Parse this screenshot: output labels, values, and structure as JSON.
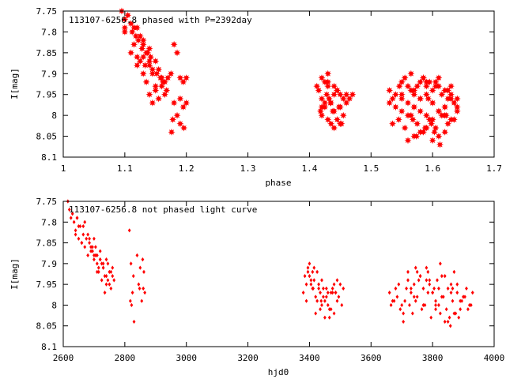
{
  "chart_data": [
    {
      "type": "scatter",
      "title": "113107-6256.8 phased with P=2392day",
      "xlabel": "phase",
      "ylabel": "I[mag]",
      "xlim": [
        1,
        1.7
      ],
      "ylim": [
        8.1,
        7.75
      ],
      "y_inverted": true,
      "xticks": [
        "1",
        "1.1",
        "1.2",
        "1.3",
        "1.4",
        "1.5",
        "1.6",
        "1.7"
      ],
      "yticks": [
        "7.75",
        "7.8",
        "7.85",
        "7.9",
        "7.95",
        "8",
        "8.05",
        "8.1"
      ],
      "marker": "star",
      "color": "#ff0000",
      "series": [
        {
          "x": [
            1.095,
            1.1,
            1.105,
            1.1,
            1.11,
            1.112,
            1.115,
            1.118,
            1.1,
            1.12,
            1.122,
            1.115,
            1.125,
            1.128,
            1.13,
            1.11,
            1.12,
            1.13,
            1.135,
            1.14,
            1.125,
            1.13,
            1.133,
            1.137,
            1.14,
            1.142,
            1.145,
            1.12,
            1.13,
            1.14,
            1.15,
            1.152,
            1.155,
            1.16,
            1.135,
            1.145,
            1.15,
            1.158,
            1.162,
            1.14,
            1.15,
            1.16,
            1.165,
            1.145,
            1.155,
            1.165,
            1.17,
            1.175,
            1.18,
            1.185,
            1.19,
            1.195,
            1.2,
            1.18,
            1.19,
            1.185,
            1.195,
            1.178,
            1.2,
            1.176,
            1.19,
            1.196,
            1.168,
            1.42,
            1.425,
            1.43,
            1.428,
            1.415,
            1.42,
            1.43,
            1.435,
            1.44,
            1.418,
            1.425,
            1.432,
            1.44,
            1.445,
            1.45,
            1.455,
            1.42,
            1.43,
            1.44,
            1.45,
            1.46,
            1.465,
            1.47,
            1.425,
            1.435,
            1.445,
            1.455,
            1.44,
            1.45,
            1.43,
            1.42,
            1.445,
            1.438,
            1.46,
            1.448,
            1.412,
            1.452,
            1.434,
            1.53,
            1.535,
            1.54,
            1.55,
            1.555,
            1.56,
            1.565,
            1.57,
            1.575,
            1.58,
            1.585,
            1.59,
            1.595,
            1.6,
            1.605,
            1.61,
            1.615,
            1.62,
            1.625,
            1.63,
            1.635,
            1.64,
            1.53,
            1.54,
            1.55,
            1.56,
            1.57,
            1.58,
            1.59,
            1.6,
            1.61,
            1.62,
            1.63,
            1.64,
            1.535,
            1.545,
            1.555,
            1.565,
            1.575,
            1.585,
            1.595,
            1.605,
            1.615,
            1.625,
            1.635,
            1.55,
            1.56,
            1.57,
            1.58,
            1.59,
            1.6,
            1.61,
            1.62,
            1.63,
            1.56,
            1.57,
            1.58,
            1.59,
            1.6,
            1.61,
            1.62,
            1.55,
            1.57,
            1.59,
            1.61,
            1.63,
            1.58,
            1.6,
            1.62,
            1.64,
            1.565,
            1.585,
            1.605,
            1.625,
            1.546,
            1.598,
            1.612,
            1.574,
            1.588,
            1.622,
            1.603,
            1.568,
            1.593
          ],
          "y": [
            7.75,
            7.77,
            7.76,
            7.79,
            7.78,
            7.8,
            7.79,
            7.81,
            7.8,
            7.79,
            7.82,
            7.83,
            7.81,
            7.84,
            7.83,
            7.85,
            7.86,
            7.82,
            7.85,
            7.84,
            7.87,
            7.86,
            7.88,
            7.85,
            7.87,
            7.86,
            7.89,
            7.88,
            7.9,
            7.88,
            7.87,
            7.9,
            7.89,
            7.91,
            7.92,
            7.9,
            7.93,
            7.91,
            7.92,
            7.95,
            7.94,
            7.93,
            7.95,
            7.97,
            7.96,
            7.92,
            7.91,
            7.9,
            7.83,
            7.85,
            7.91,
            7.92,
            7.91,
            7.97,
            7.96,
            8.0,
            7.98,
            8.01,
            7.97,
            8.04,
            8.02,
            8.03,
            7.94,
            7.91,
            7.92,
            7.9,
            7.95,
            7.94,
            7.96,
            7.93,
            7.97,
            7.95,
            7.99,
            7.98,
            7.96,
            7.93,
            7.94,
            7.95,
            7.96,
            8.0,
            8.01,
            7.99,
            7.98,
            7.97,
            7.96,
            7.95,
            7.97,
            8.02,
            8.01,
            8.0,
            8.03,
            8.02,
            7.92,
            7.98,
            7.94,
            7.99,
            7.95,
            7.98,
            7.93,
            8.02,
            7.97,
            7.94,
            7.96,
            7.95,
            7.92,
            7.91,
            7.93,
            7.94,
            7.95,
            7.93,
            7.92,
            7.91,
            7.93,
            7.92,
            7.94,
            7.93,
            7.91,
            7.95,
            7.94,
            7.96,
            7.93,
            7.97,
            7.96,
            7.97,
            7.98,
            7.99,
            8.0,
            7.98,
            7.99,
            8.0,
            8.01,
            7.99,
            8.0,
            8.01,
            7.98,
            8.02,
            8.01,
            8.03,
            8.0,
            8.02,
            8.04,
            8.01,
            8.03,
            8.0,
            8.02,
            8.01,
            7.96,
            7.97,
            7.98,
            7.96,
            7.95,
            7.97,
            7.99,
            7.98,
            7.96,
            8.06,
            8.05,
            8.04,
            8.03,
            8.06,
            8.05,
            8.04,
            7.95,
            7.94,
            7.92,
            7.93,
            7.95,
            7.96,
            7.97,
            7.98,
            7.99,
            7.9,
            7.91,
            7.92,
            7.94,
            7.93,
            8.02,
            8.07,
            8.05,
            8.03,
            8.0,
            8.04,
            8.01,
            7.96
          ]
        }
      ]
    },
    {
      "type": "scatter",
      "title": "113107-6256.8 not phased light curve",
      "xlabel": "hjd0",
      "ylabel": "I[mag]",
      "xlim": [
        2600,
        4000
      ],
      "ylim": [
        8.1,
        7.75
      ],
      "y_inverted": true,
      "xticks": [
        "2600",
        "2800",
        "3000",
        "3200",
        "3400",
        "3600",
        "3800",
        "4000"
      ],
      "yticks": [
        "7.75",
        "7.8",
        "7.85",
        "7.9",
        "7.95",
        "8",
        "8.05",
        "8.1"
      ],
      "marker": "diamond",
      "color": "#ff0000",
      "series": [
        {
          "x": [
            2615,
            2620,
            2625,
            2630,
            2635,
            2640,
            2645,
            2650,
            2655,
            2660,
            2665,
            2670,
            2675,
            2680,
            2685,
            2690,
            2695,
            2700,
            2705,
            2710,
            2715,
            2720,
            2725,
            2730,
            2735,
            2740,
            2745,
            2750,
            2755,
            2760,
            2765,
            2640,
            2650,
            2660,
            2670,
            2680,
            2690,
            2700,
            2710,
            2720,
            2730,
            2740,
            2750,
            2760,
            2645,
            2665,
            2685,
            2705,
            2725,
            2745,
            2695,
            2715,
            2735,
            2755,
            2700,
            2720,
            2740,
            2710,
            2730,
            2815,
            2820,
            2825,
            2830,
            2840,
            2845,
            2850,
            2855,
            2860,
            2865,
            2818,
            2828,
            2848,
            2858,
            2822,
            2862,
            3380,
            3385,
            3390,
            3395,
            3400,
            3405,
            3410,
            3415,
            3420,
            3425,
            3430,
            3435,
            3440,
            3445,
            3450,
            3455,
            3460,
            3465,
            3470,
            3475,
            3480,
            3485,
            3490,
            3495,
            3500,
            3505,
            3510,
            3390,
            3400,
            3410,
            3420,
            3430,
            3440,
            3450,
            3460,
            3470,
            3480,
            3490,
            3395,
            3415,
            3435,
            3455,
            3475,
            3405,
            3425,
            3445,
            3465,
            3485,
            3412,
            3438,
            3660,
            3670,
            3680,
            3690,
            3700,
            3710,
            3720,
            3730,
            3740,
            3750,
            3760,
            3770,
            3780,
            3790,
            3800,
            3810,
            3820,
            3830,
            3840,
            3850,
            3860,
            3870,
            3880,
            3890,
            3900,
            3910,
            3920,
            3930,
            3665,
            3675,
            3685,
            3695,
            3705,
            3715,
            3725,
            3735,
            3745,
            3755,
            3765,
            3775,
            3785,
            3795,
            3805,
            3815,
            3825,
            3835,
            3845,
            3855,
            3865,
            3875,
            3885,
            3895,
            3905,
            3915,
            3925,
            3720,
            3740,
            3760,
            3780,
            3800,
            3820,
            3840,
            3860,
            3880,
            3900,
            3730,
            3750,
            3770,
            3790,
            3810,
            3830,
            3850,
            3870,
            3890,
            3745,
            3785,
            3825,
            3865,
            3705,
            3858,
            3810
          ],
          "y": [
            7.75,
            7.77,
            7.79,
            7.78,
            7.8,
            7.82,
            7.79,
            7.84,
            7.81,
            7.85,
            7.83,
            7.86,
            7.84,
            7.88,
            7.85,
            7.87,
            7.86,
            7.89,
            7.88,
            7.9,
            7.92,
            7.89,
            7.94,
            7.91,
            7.97,
            7.93,
            7.9,
            7.95,
            7.92,
            7.91,
            7.94,
            7.83,
            7.81,
            7.85,
            7.8,
            7.83,
            7.86,
            7.84,
            7.88,
            7.87,
            7.9,
            7.89,
            7.92,
            7.93,
            7.79,
            7.81,
            7.84,
            7.86,
            7.9,
            7.94,
            7.87,
            7.91,
            7.93,
            7.96,
            7.88,
            7.89,
            7.95,
            7.92,
            7.91,
            7.82,
            7.9,
            7.97,
            8.04,
            7.88,
            7.95,
            7.91,
            7.99,
            7.96,
            7.97,
            7.99,
            7.93,
            7.96,
            7.89,
            8.0,
            7.92,
            7.97,
            7.93,
            7.95,
            7.92,
            7.9,
            7.94,
            7.96,
            7.91,
            7.98,
            7.99,
            7.95,
            7.97,
            7.94,
            7.96,
            7.99,
            7.98,
            8.0,
            8.01,
            7.97,
            7.96,
            7.95,
            7.97,
            7.94,
            7.98,
            7.95,
            8.0,
            7.96,
            7.99,
            7.93,
            7.92,
            8.02,
            7.96,
            8.0,
            8.03,
            7.97,
            8.01,
            8.02,
            7.99,
            7.91,
            7.94,
            8.01,
            7.96,
            7.97,
            7.95,
            7.92,
            7.98,
            8.03,
            7.97,
            7.96,
            7.99,
            7.97,
            7.99,
            7.96,
            7.95,
            8.0,
            7.99,
            7.94,
            7.97,
            7.98,
            7.92,
            7.93,
            7.96,
            7.91,
            7.94,
            7.97,
            7.99,
            8.0,
            7.98,
            7.93,
            7.96,
            7.95,
            7.92,
            7.97,
            7.99,
            7.98,
            7.96,
            8.0,
            7.97,
            8.0,
            7.99,
            7.98,
            8.01,
            8.02,
            7.96,
            8.0,
            8.02,
            7.99,
            7.94,
            8.01,
            8.0,
            7.97,
            8.03,
            7.96,
            7.94,
            8.02,
            7.98,
            8.01,
            8.03,
            7.99,
            8.02,
            8.03,
            7.99,
            7.98,
            8.01,
            8.0,
            7.92,
            7.95,
            7.93,
            7.94,
            7.97,
            7.96,
            8.04,
            7.97,
            7.95,
            7.98,
            7.96,
            7.98,
            8.0,
            7.95,
            8.0,
            7.93,
            8.04,
            8.02,
            8.01,
            7.91,
            7.92,
            7.9,
            7.96,
            8.04,
            8.05,
            8.01
          ]
        }
      ]
    }
  ]
}
